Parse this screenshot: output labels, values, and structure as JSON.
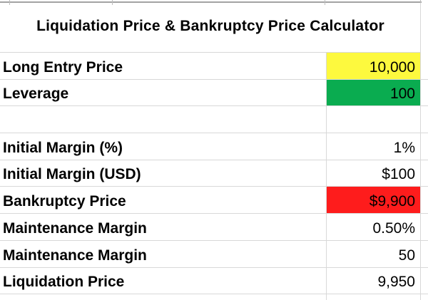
{
  "title": "Liquidation Price & Bankruptcy Price Calculator",
  "colors": {
    "yellow": "#fdf93e",
    "green": "#0aac50",
    "red": "#fe1c1c",
    "gridline": "#d8d8d8",
    "topline": "#a3a3a3",
    "text": "#000000"
  },
  "rows": [
    {
      "label": "Long Entry Price",
      "value": "10,000",
      "highlight": "yellow"
    },
    {
      "label": "Leverage",
      "value": "100",
      "highlight": "green"
    },
    {
      "label": "",
      "value": "",
      "highlight": "none"
    },
    {
      "label": "Initial Margin (%)",
      "value": "1%",
      "highlight": "none"
    },
    {
      "label": "Initial Margin (USD)",
      "value": "$100",
      "highlight": "none"
    },
    {
      "label": "Bankruptcy Price",
      "value": "$9,900",
      "highlight": "red"
    },
    {
      "label": "Maintenance Margin",
      "value": "0.50%",
      "highlight": "none"
    },
    {
      "label": "Maintenance Margin",
      "value": "50",
      "highlight": "none"
    },
    {
      "label": "Liquidation Price",
      "value": "9,950",
      "highlight": "none"
    }
  ]
}
